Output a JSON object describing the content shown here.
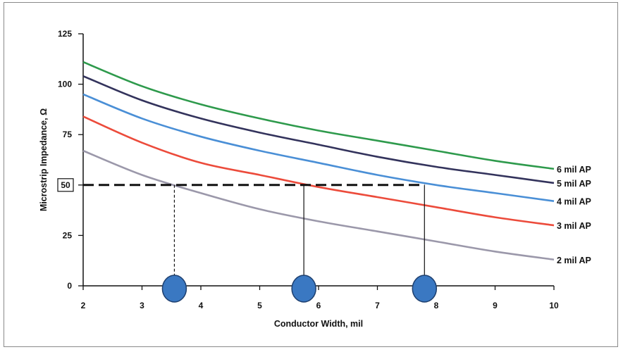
{
  "chart_data": {
    "type": "line",
    "title": "",
    "xlabel": "Conductor Width, mil",
    "ylabel": "Microstrip Impedance, Ω",
    "xlim": [
      2,
      10
    ],
    "ylim": [
      0,
      125
    ],
    "xticks": [
      2,
      3,
      4,
      5,
      6,
      7,
      8,
      9,
      10
    ],
    "yticks": [
      0,
      25,
      50,
      75,
      100,
      125
    ],
    "grid": false,
    "highlighted_ytick": 50,
    "series": [
      {
        "name": "6 mil AP",
        "color": "#2e9a4c",
        "x": [
          2,
          3,
          4,
          5,
          6,
          7,
          8,
          9,
          10
        ],
        "y": [
          111,
          99,
          90,
          83,
          77,
          72,
          67,
          62,
          58
        ]
      },
      {
        "name": "5 mil AP",
        "color": "#33335c",
        "x": [
          2,
          3,
          4,
          5,
          6,
          7,
          8,
          9,
          10
        ],
        "y": [
          104,
          92,
          83,
          76,
          70,
          64,
          59,
          55,
          51
        ]
      },
      {
        "name": "4 mil AP",
        "color": "#4a8fd6",
        "x": [
          2,
          3,
          4,
          5,
          6,
          7,
          8,
          9,
          10
        ],
        "y": [
          95,
          83,
          74,
          67,
          61,
          55,
          50,
          46,
          42
        ]
      },
      {
        "name": "3 mil AP",
        "color": "#ec4b3b",
        "x": [
          2,
          3,
          4,
          5,
          6,
          7,
          8,
          9,
          10
        ],
        "y": [
          84,
          71,
          61,
          55,
          49,
          44,
          39,
          34,
          30
        ]
      },
      {
        "name": "2 mil AP",
        "color": "#9b98aa",
        "x": [
          2,
          3,
          4,
          5,
          6,
          7,
          8,
          9,
          10
        ],
        "y": [
          67,
          55,
          46,
          38,
          32,
          27,
          22,
          17,
          13
        ]
      }
    ],
    "reference_line": {
      "y": 50,
      "x_start": 2,
      "x_end": 7.8,
      "style": "dashed"
    },
    "markers": [
      {
        "x": 3.55,
        "y": 50,
        "drop_style": "dashed",
        "color": "#3a78c2"
      },
      {
        "x": 5.75,
        "y": 50,
        "drop_style": "solid",
        "color": "#3a78c2"
      },
      {
        "x": 7.8,
        "y": 50,
        "drop_style": "solid",
        "color": "#3a78c2"
      }
    ]
  }
}
